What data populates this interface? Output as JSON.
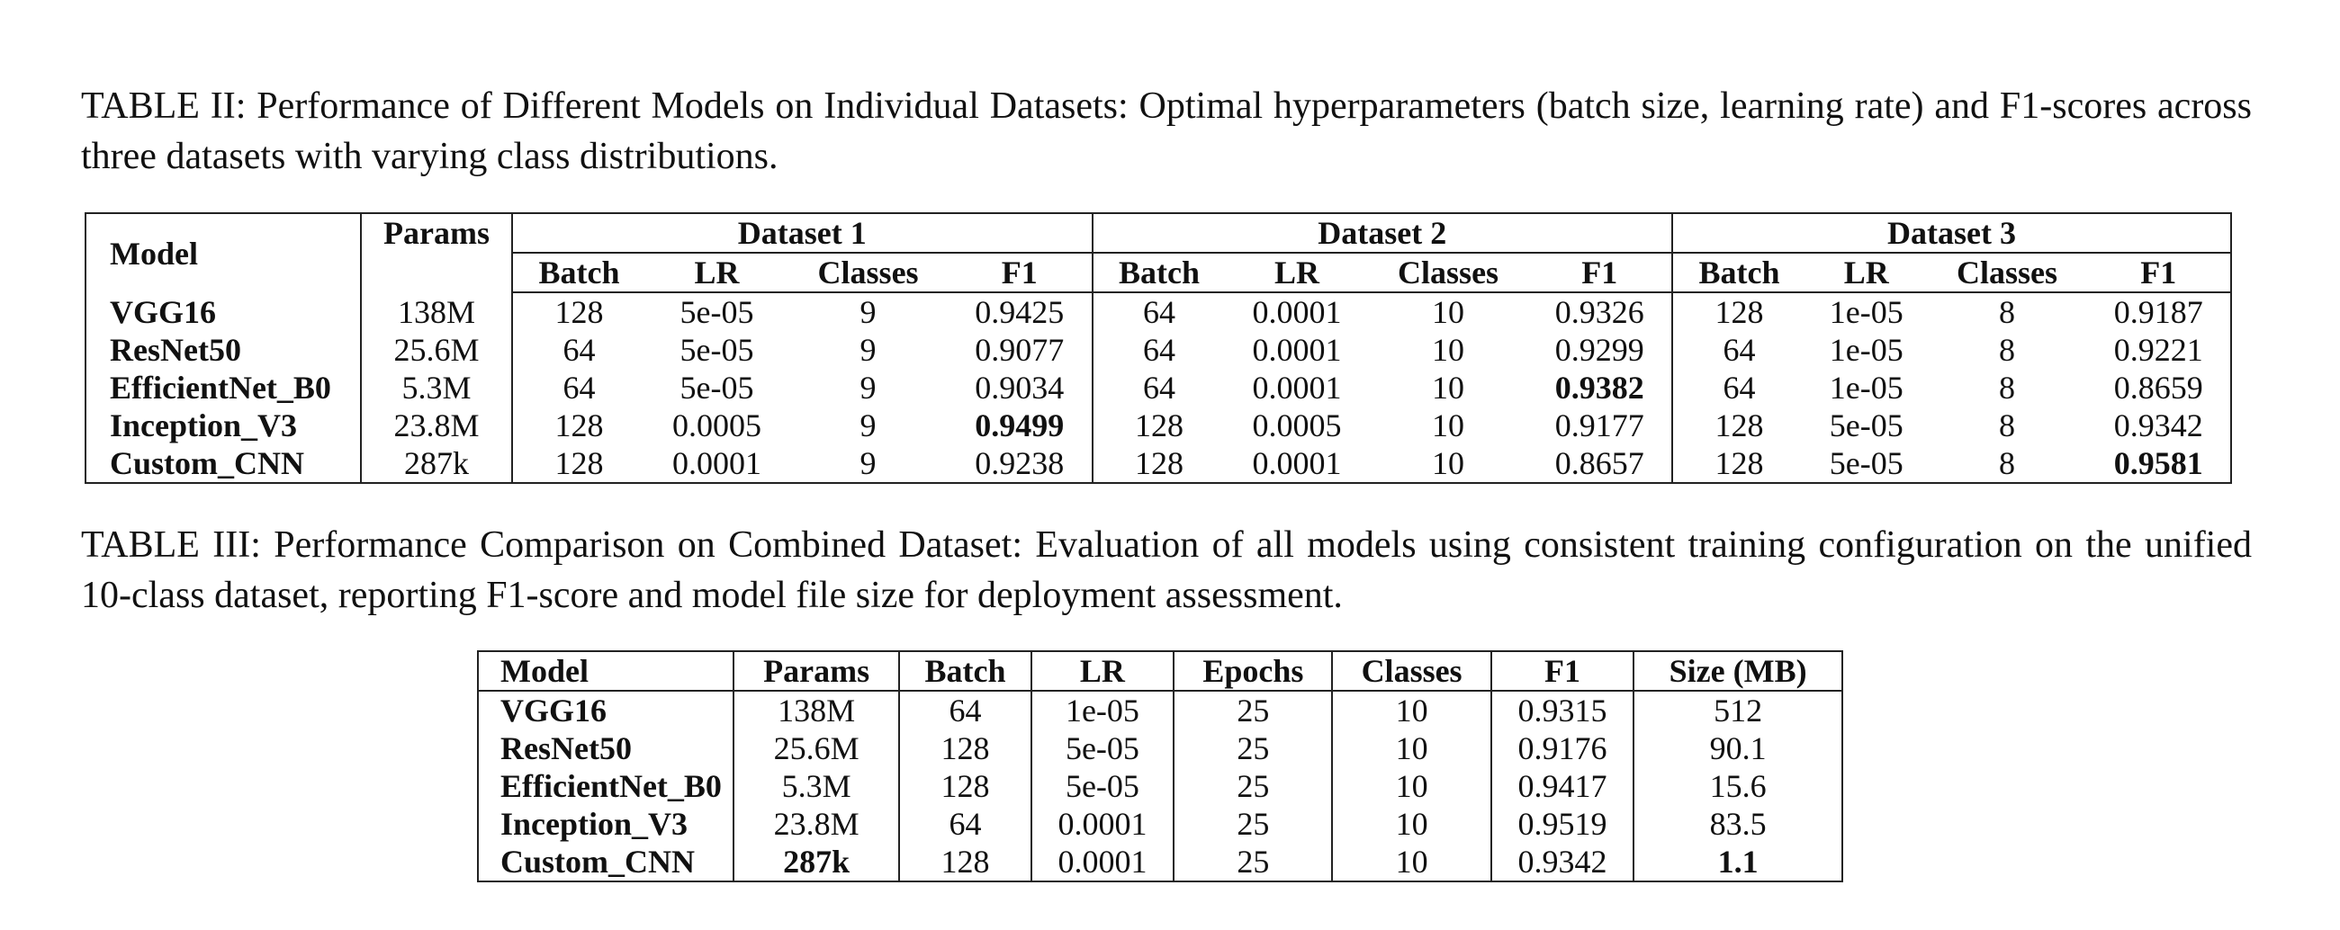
{
  "table2": {
    "caption": "TABLE II: Performance of Different Models on Individual Datasets: Optimal hyperparameters (batch size, learning rate) and F1-scores across three datasets with varying class distributions.",
    "header": {
      "model": "Model",
      "params": "Params",
      "groups": [
        "Dataset 1",
        "Dataset 2",
        "Dataset 3"
      ],
      "sub": [
        "Batch",
        "LR",
        "Classes",
        "F1"
      ]
    },
    "rows": [
      {
        "model": "VGG16",
        "params": "138M",
        "d1": {
          "batch": "128",
          "lr": "5e-05",
          "classes": "9",
          "f1": "0.9425"
        },
        "d2": {
          "batch": "64",
          "lr": "0.0001",
          "classes": "10",
          "f1": "0.9326"
        },
        "d3": {
          "batch": "128",
          "lr": "1e-05",
          "classes": "8",
          "f1": "0.9187"
        }
      },
      {
        "model": "ResNet50",
        "params": "25.6M",
        "d1": {
          "batch": "64",
          "lr": "5e-05",
          "classes": "9",
          "f1": "0.9077"
        },
        "d2": {
          "batch": "64",
          "lr": "0.0001",
          "classes": "10",
          "f1": "0.9299"
        },
        "d3": {
          "batch": "64",
          "lr": "1e-05",
          "classes": "8",
          "f1": "0.9221"
        }
      },
      {
        "model": "EfficientNet_B0",
        "params": "5.3M",
        "d1": {
          "batch": "64",
          "lr": "5e-05",
          "classes": "9",
          "f1": "0.9034"
        },
        "d2": {
          "batch": "64",
          "lr": "0.0001",
          "classes": "10",
          "f1": "0.9382"
        },
        "d3": {
          "batch": "64",
          "lr": "1e-05",
          "classes": "8",
          "f1": "0.8659"
        }
      },
      {
        "model": "Inception_V3",
        "params": "23.8M",
        "d1": {
          "batch": "128",
          "lr": "0.0005",
          "classes": "9",
          "f1": "0.9499"
        },
        "d2": {
          "batch": "128",
          "lr": "0.0005",
          "classes": "10",
          "f1": "0.9177"
        },
        "d3": {
          "batch": "128",
          "lr": "5e-05",
          "classes": "8",
          "f1": "0.9342"
        }
      },
      {
        "model": "Custom_CNN",
        "params": "287k",
        "d1": {
          "batch": "128",
          "lr": "0.0001",
          "classes": "9",
          "f1": "0.9238"
        },
        "d2": {
          "batch": "128",
          "lr": "0.0001",
          "classes": "10",
          "f1": "0.8657"
        },
        "d3": {
          "batch": "128",
          "lr": "5e-05",
          "classes": "8",
          "f1": "0.9581"
        }
      }
    ]
  },
  "table3": {
    "caption": "TABLE III: Performance Comparison on Combined Dataset: Evaluation of all models using consistent training configuration on the unified 10-class dataset, reporting F1-score and model file size for deployment assessment.",
    "header": [
      "Model",
      "Params",
      "Batch",
      "LR",
      "Epochs",
      "Classes",
      "F1",
      "Size (MB)"
    ],
    "rows": [
      {
        "model": "VGG16",
        "params": "138M",
        "batch": "64",
        "lr": "1e-05",
        "epochs": "25",
        "classes": "10",
        "f1": "0.9315",
        "size": "512"
      },
      {
        "model": "ResNet50",
        "params": "25.6M",
        "batch": "128",
        "lr": "5e-05",
        "epochs": "25",
        "classes": "10",
        "f1": "0.9176",
        "size": "90.1"
      },
      {
        "model": "EfficientNet_B0",
        "params": "5.3M",
        "batch": "128",
        "lr": "5e-05",
        "epochs": "25",
        "classes": "10",
        "f1": "0.9417",
        "size": "15.6"
      },
      {
        "model": "Inception_V3",
        "params": "23.8M",
        "batch": "64",
        "lr": "0.0001",
        "epochs": "25",
        "classes": "10",
        "f1": "0.9519",
        "size": "83.5"
      },
      {
        "model": "Custom_CNN",
        "params": "287k",
        "batch": "128",
        "lr": "0.0001",
        "epochs": "25",
        "classes": "10",
        "f1": "0.9342",
        "size": "1.1"
      }
    ]
  }
}
